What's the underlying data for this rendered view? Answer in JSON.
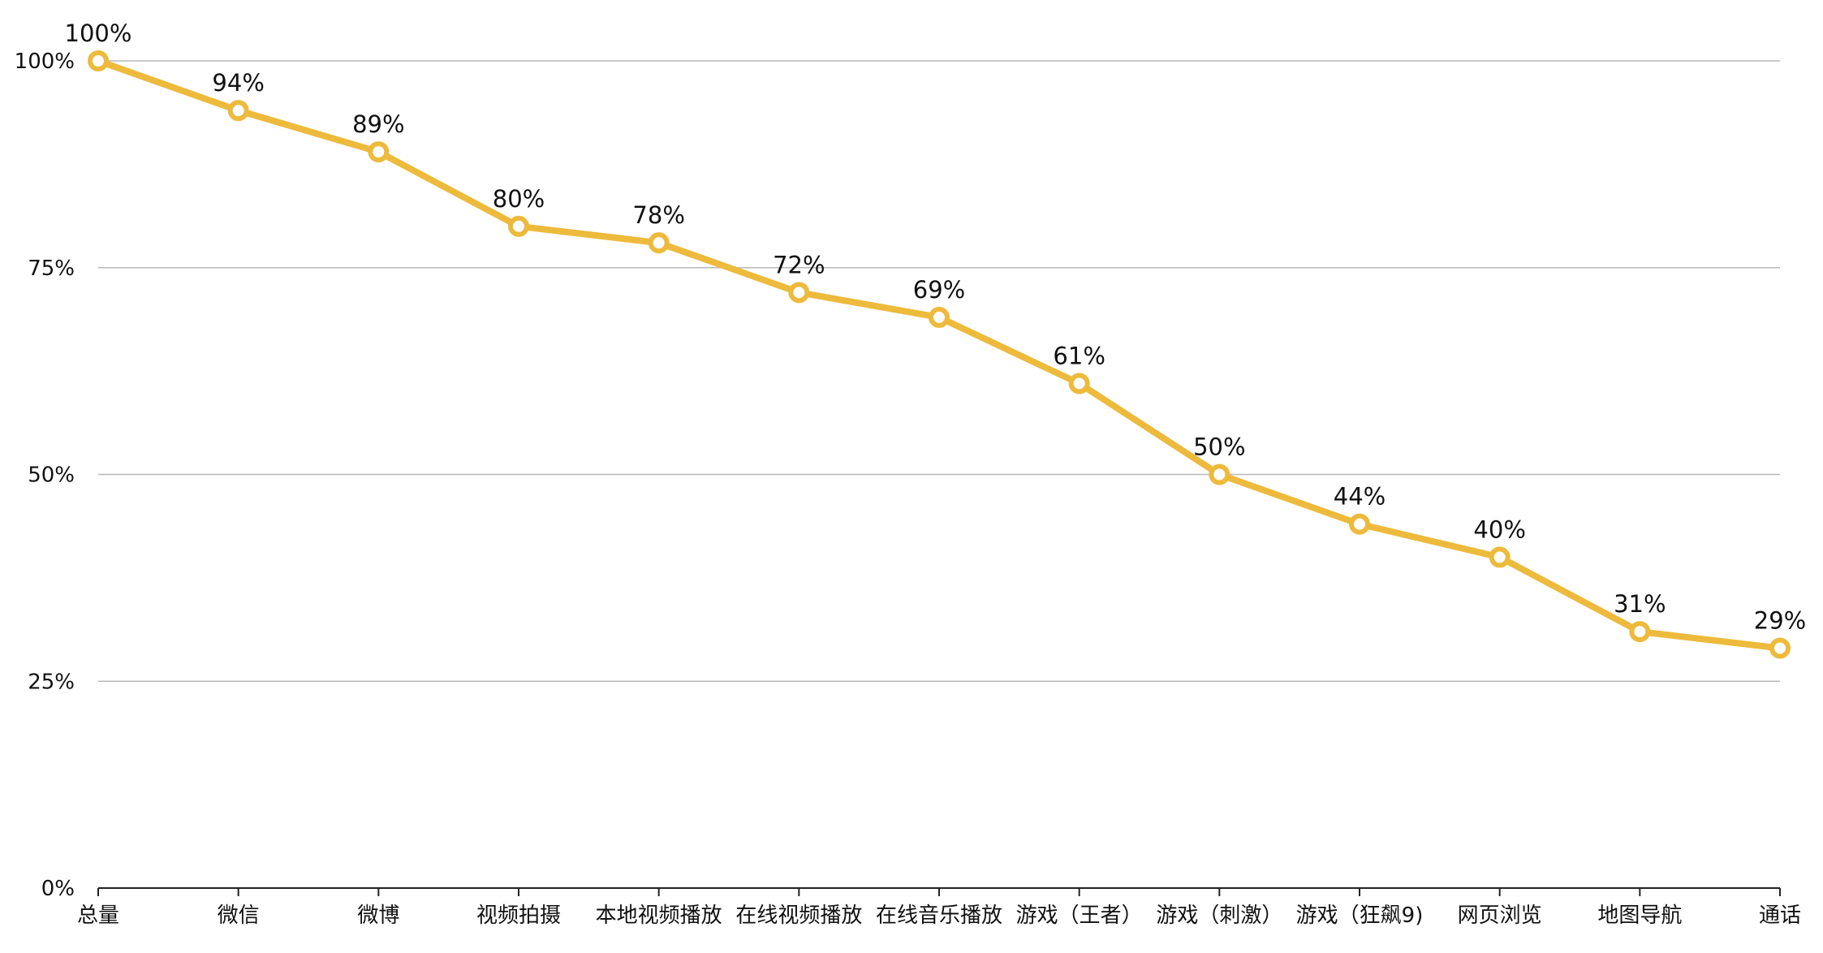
{
  "chart_data": {
    "type": "line",
    "title": "",
    "xlabel": "",
    "ylabel": "",
    "categories": [
      "总量",
      "微信",
      "微博",
      "视频拍摄",
      "本地视频播放",
      "在线视频播放",
      "在线音乐播放",
      "游戏（王者）",
      "游戏（刺激）",
      "游戏（狂飙9)",
      "网页浏览",
      "地图导航",
      "通话"
    ],
    "series": [
      {
        "values": [
          100,
          94,
          89,
          80,
          78,
          72,
          69,
          61,
          50,
          44,
          40,
          31,
          29
        ],
        "labels": [
          "100%",
          "94%",
          "89%",
          "80%",
          "78%",
          "72%",
          "69%",
          "61%",
          "50%",
          "44%",
          "40%",
          "31%",
          "29%"
        ],
        "color": "#EDBA3C"
      }
    ],
    "ylim": [
      0,
      100
    ],
    "yticks": [
      0,
      25,
      50,
      75,
      100
    ],
    "ytick_labels": [
      "0%",
      "25%",
      "50%",
      "75%",
      "100%"
    ],
    "grid": true,
    "legend": "none"
  }
}
